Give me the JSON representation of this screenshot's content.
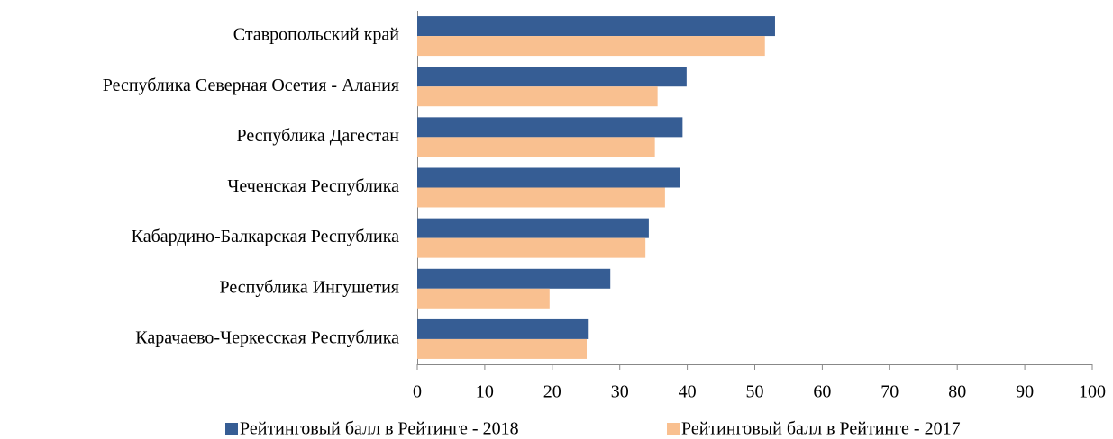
{
  "chart_data": {
    "type": "barh",
    "categories": [
      "Ставропольский край",
      "Республика Северная Осетия - Алания",
      "Республика Дагестан",
      "Чеченская Республика",
      "Кабардино-Балкарская Республика",
      "Республика Ингушетия",
      "Карачаево-Черкесская Республика"
    ],
    "series": [
      {
        "name": "Рейтинговый балл в Рейтинге - 2018",
        "color": "#365d94",
        "values": [
          53.0,
          39.9,
          39.3,
          38.9,
          34.3,
          28.6,
          25.4
        ]
      },
      {
        "name": "Рейтинговый балл в Рейтинге - 2017",
        "color": "#f9c090",
        "values": [
          51.5,
          35.6,
          35.2,
          36.7,
          33.8,
          19.6,
          25.1
        ]
      }
    ],
    "xlim": [
      0,
      100
    ],
    "xticks": [
      0,
      10,
      20,
      30,
      40,
      50,
      60,
      70,
      80,
      90,
      100
    ],
    "legend": "bottom",
    "grid": false
  }
}
